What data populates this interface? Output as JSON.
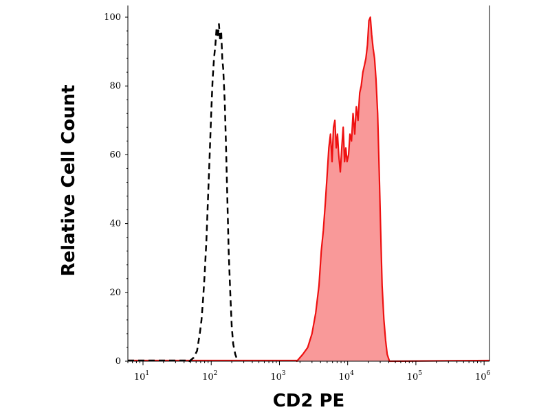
{
  "chart_data": {
    "type": "area",
    "xlabel": "CD2 PE",
    "ylabel": "Relative Cell Count",
    "xscale": "log",
    "xlim": [
      6,
      1200000
    ],
    "ylim": [
      0,
      100
    ],
    "x_ticks": [
      {
        "base": "10",
        "exp": "1",
        "value": 10
      },
      {
        "base": "10",
        "exp": "2",
        "value": 100
      },
      {
        "base": "10",
        "exp": "3",
        "value": 1000
      },
      {
        "base": "10",
        "exp": "4",
        "value": 10000
      },
      {
        "base": "10",
        "exp": "5",
        "value": 100000
      },
      {
        "base": "10",
        "exp": "6",
        "value": 1000000
      }
    ],
    "y_ticks": [
      {
        "label": "0",
        "value": 0
      },
      {
        "label": "20",
        "value": 20
      },
      {
        "label": "40",
        "value": 40
      },
      {
        "label": "60",
        "value": 60
      },
      {
        "label": "80",
        "value": 80
      },
      {
        "label": "100",
        "value": 100
      }
    ],
    "grid": false,
    "legend": "none",
    "series": [
      {
        "style": "dashed",
        "color": "#000000",
        "fill": "none",
        "points": [
          [
            48,
            0
          ],
          [
            55,
            1
          ],
          [
            62,
            3
          ],
          [
            68,
            8
          ],
          [
            72,
            12
          ],
          [
            76,
            18
          ],
          [
            80,
            25
          ],
          [
            85,
            35
          ],
          [
            90,
            48
          ],
          [
            95,
            60
          ],
          [
            100,
            72
          ],
          [
            105,
            82
          ],
          [
            110,
            88
          ],
          [
            115,
            92
          ],
          [
            120,
            97
          ],
          [
            125,
            94
          ],
          [
            130,
            98
          ],
          [
            135,
            93
          ],
          [
            140,
            96
          ],
          [
            145,
            88
          ],
          [
            150,
            85
          ],
          [
            158,
            75
          ],
          [
            165,
            62
          ],
          [
            172,
            48
          ],
          [
            180,
            32
          ],
          [
            190,
            20
          ],
          [
            200,
            10
          ],
          [
            210,
            5
          ],
          [
            225,
            2
          ],
          [
            245,
            0
          ]
        ]
      },
      {
        "style": "solid",
        "color": "#ee1111",
        "fill": "#f99999",
        "points": [
          [
            1800,
            0
          ],
          [
            2200,
            2
          ],
          [
            2600,
            4
          ],
          [
            3000,
            8
          ],
          [
            3400,
            14
          ],
          [
            3800,
            22
          ],
          [
            4100,
            32
          ],
          [
            4400,
            38
          ],
          [
            4700,
            46
          ],
          [
            5000,
            54
          ],
          [
            5300,
            62
          ],
          [
            5600,
            66
          ],
          [
            5900,
            58
          ],
          [
            6200,
            68
          ],
          [
            6500,
            70
          ],
          [
            6800,
            62
          ],
          [
            7100,
            66
          ],
          [
            7400,
            60
          ],
          [
            7800,
            55
          ],
          [
            8200,
            62
          ],
          [
            8600,
            68
          ],
          [
            9000,
            58
          ],
          [
            9400,
            62
          ],
          [
            9800,
            58
          ],
          [
            10300,
            60
          ],
          [
            10800,
            66
          ],
          [
            11400,
            64
          ],
          [
            12000,
            72
          ],
          [
            12700,
            66
          ],
          [
            13400,
            74
          ],
          [
            14200,
            70
          ],
          [
            15000,
            78
          ],
          [
            15800,
            80
          ],
          [
            16700,
            84
          ],
          [
            17600,
            86
          ],
          [
            18500,
            88
          ],
          [
            19500,
            92
          ],
          [
            20500,
            99
          ],
          [
            21500,
            100
          ],
          [
            22500,
            95
          ],
          [
            23600,
            91
          ],
          [
            24800,
            88
          ],
          [
            26000,
            82
          ],
          [
            27500,
            72
          ],
          [
            29000,
            55
          ],
          [
            30500,
            38
          ],
          [
            32000,
            22
          ],
          [
            34000,
            12
          ],
          [
            36000,
            6
          ],
          [
            38000,
            2
          ],
          [
            41000,
            0
          ]
        ]
      }
    ]
  }
}
